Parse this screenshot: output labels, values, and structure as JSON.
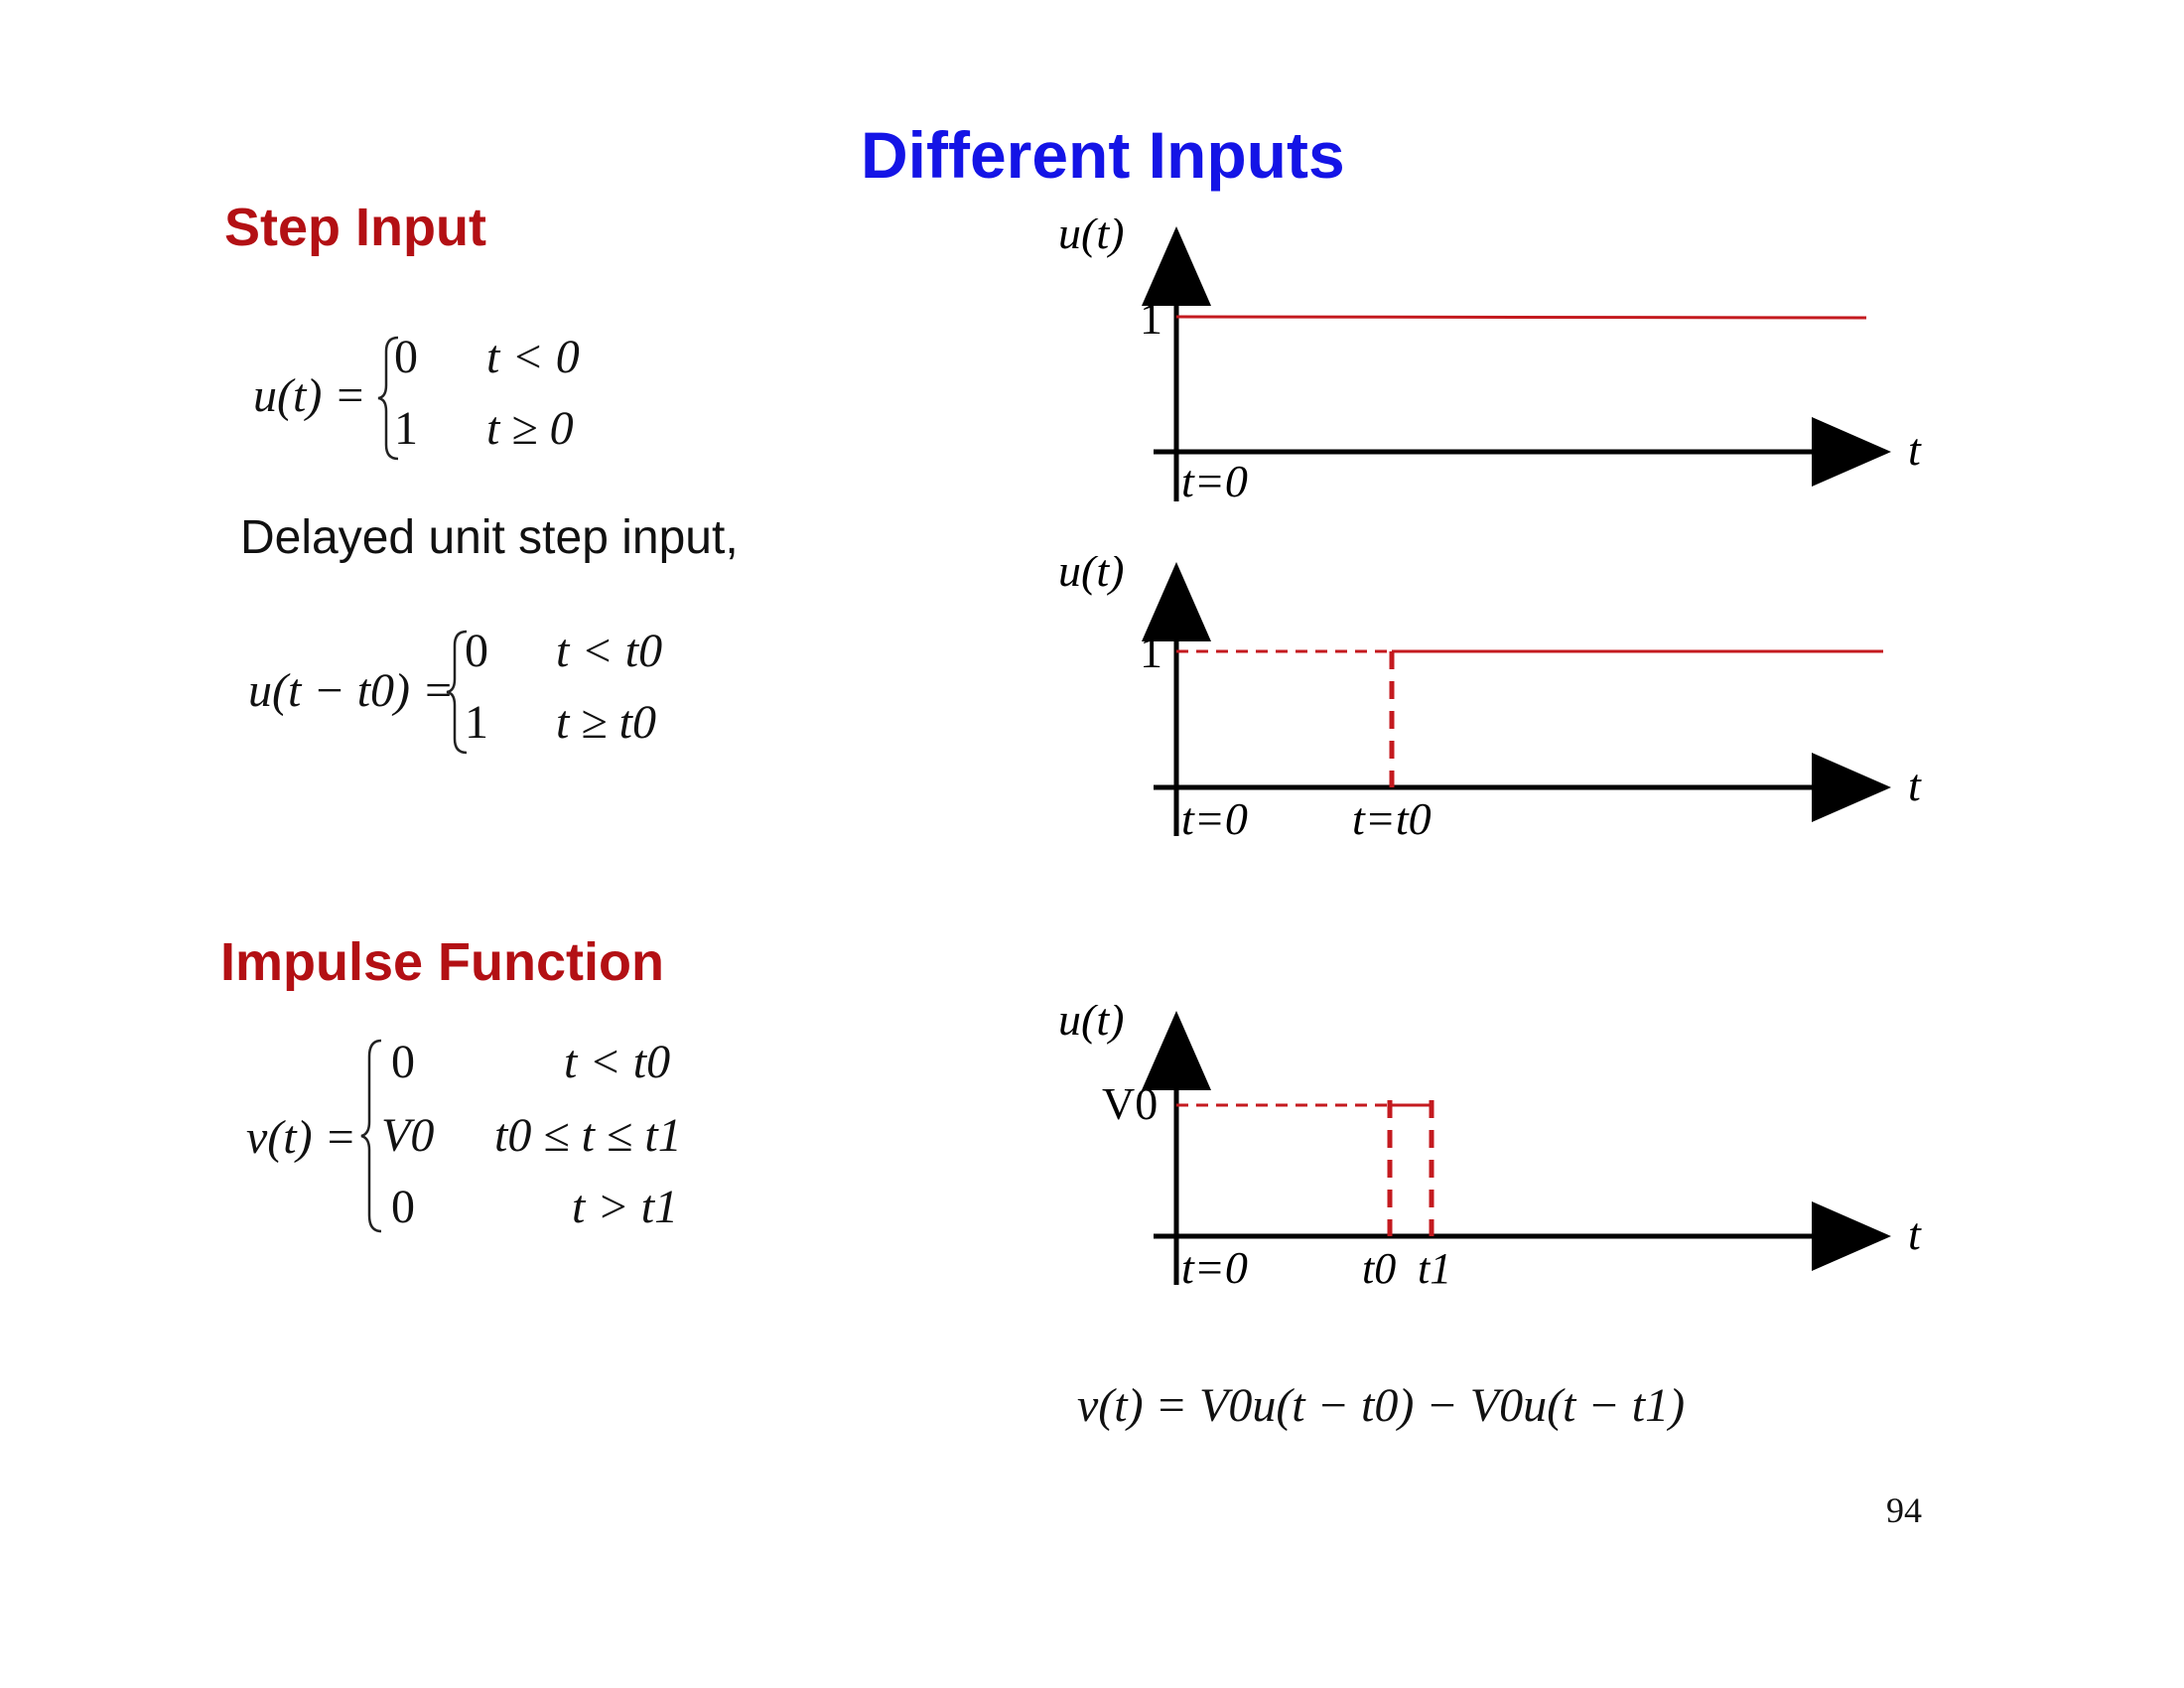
{
  "slide": {
    "title": "Different Inputs",
    "page_number": "94"
  },
  "step_section": {
    "heading": "Step Input",
    "eq_lhs": "u(t) =",
    "case1_value": "0",
    "case1_cond": "t < 0",
    "case2_value": "1",
    "case2_cond": "t ≥ 0",
    "delayed_text": "Delayed unit step input,"
  },
  "delayed_eq": {
    "lhs": "u(t − t0) =",
    "case1_value": "0",
    "case1_cond": "t < t0",
    "case2_value": "1",
    "case2_cond": "t ≥ t0"
  },
  "impulse_section": {
    "heading": "Impulse Function",
    "lhs": "v(t) =",
    "case1_value": "0",
    "case1_cond": "t < t0",
    "case2_value": "V0",
    "case2_cond": "t0 ≤ t ≤ t1",
    "case3_value": "0",
    "case3_cond": "t > t1",
    "composite_eq": "v(t) = V0u(t − t0) − V0u(t − t1)"
  },
  "graphs": {
    "step": {
      "y_label": "u(t)",
      "x_label": "t",
      "level_label": "1",
      "origin_label": "t=0",
      "level": 1
    },
    "delayed": {
      "y_label": "u(t)",
      "x_label": "t",
      "level_label": "1",
      "origin_label": "t=0",
      "step_label": "t=t0",
      "level": 1
    },
    "impulse": {
      "y_label": "u(t)",
      "x_label": "t",
      "level_label": "V0",
      "origin_label": "t=0",
      "t0_label": "t0",
      "t1_label": "t1"
    }
  },
  "colors": {
    "title": "#1414e6",
    "heading": "#b31014",
    "signal": "#c41a1f",
    "axis": "#000000"
  }
}
